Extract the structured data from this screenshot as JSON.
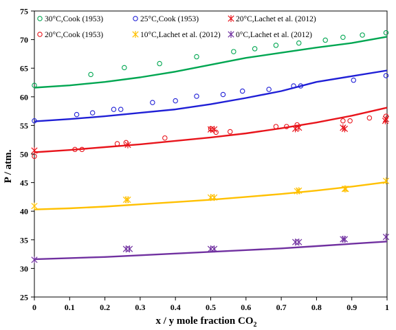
{
  "chart_data": {
    "type": "scatter",
    "xlabel": "x / y mole fraction  CO",
    "xlabel_sub": "2",
    "ylabel": "P / atm.",
    "xlim": [
      0,
      1
    ],
    "ylim": [
      25,
      75
    ],
    "x_ticks": [
      "0",
      "0.1",
      "0.2",
      "0.3",
      "0.4",
      "0.5",
      "0.6",
      "0.7",
      "0.8",
      "0.9",
      "1"
    ],
    "y_ticks": [
      "25",
      "30",
      "35",
      "40",
      "45",
      "50",
      "55",
      "60",
      "65",
      "70",
      "75"
    ],
    "grid": false,
    "legend_position": "top",
    "series": [
      {
        "name": "30°C,Cook (1953)",
        "color": "#00a651",
        "marker": "circle",
        "points": [
          [
            0,
            62.0
          ],
          [
            0.16,
            63.9
          ],
          [
            0.255,
            65.1
          ],
          [
            0.355,
            65.8
          ],
          [
            0.46,
            67.0
          ],
          [
            0.565,
            67.9
          ],
          [
            0.625,
            68.4
          ],
          [
            0.685,
            69.0
          ],
          [
            0.75,
            69.4
          ],
          [
            0.825,
            69.9
          ],
          [
            0.875,
            70.4
          ],
          [
            0.93,
            70.8
          ],
          [
            0.997,
            71.2
          ]
        ]
      },
      {
        "name": "25°C,Cook (1953)",
        "color": "#1f1fd6",
        "marker": "circle",
        "points": [
          [
            0,
            55.8
          ],
          [
            0.12,
            56.9
          ],
          [
            0.165,
            57.2
          ],
          [
            0.225,
            57.8
          ],
          [
            0.245,
            57.8
          ],
          [
            0.335,
            59.0
          ],
          [
            0.4,
            59.3
          ],
          [
            0.46,
            60.1
          ],
          [
            0.535,
            60.4
          ],
          [
            0.59,
            61.0
          ],
          [
            0.665,
            61.3
          ],
          [
            0.735,
            61.9
          ],
          [
            0.755,
            61.9
          ],
          [
            0.905,
            62.9
          ],
          [
            0.997,
            63.7
          ]
        ]
      },
      {
        "name": "20°C,Lachet et al. (2012)",
        "color": "#e8141b",
        "marker": "star",
        "points": [
          [
            0,
            50.6
          ],
          [
            0.265,
            51.6
          ],
          [
            0.5,
            54.3
          ],
          [
            0.51,
            54.3
          ],
          [
            0.74,
            54.4
          ],
          [
            0.75,
            54.6
          ],
          [
            0.875,
            54.6
          ],
          [
            0.88,
            54.4
          ],
          [
            0.995,
            55.8
          ],
          [
            0.997,
            56.1
          ]
        ]
      },
      {
        "name": "20°C,Cook (1953)",
        "color": "#e8141b",
        "marker": "circle",
        "points": [
          [
            0,
            49.6
          ],
          [
            0.115,
            50.8
          ],
          [
            0.135,
            50.8
          ],
          [
            0.235,
            51.8
          ],
          [
            0.26,
            52.0
          ],
          [
            0.37,
            52.8
          ],
          [
            0.5,
            54.4
          ],
          [
            0.515,
            53.8
          ],
          [
            0.555,
            53.9
          ],
          [
            0.685,
            54.8
          ],
          [
            0.715,
            54.8
          ],
          [
            0.745,
            55.1
          ],
          [
            0.875,
            55.8
          ],
          [
            0.895,
            55.8
          ],
          [
            0.95,
            56.3
          ],
          [
            0.997,
            56.6
          ]
        ]
      },
      {
        "name": "10°C,Lachet et al. (2012)",
        "color": "#ffc000",
        "marker": "star",
        "points": [
          [
            0,
            40.9
          ],
          [
            0.26,
            42.0
          ],
          [
            0.265,
            42.0
          ],
          [
            0.5,
            42.4
          ],
          [
            0.51,
            42.4
          ],
          [
            0.745,
            43.5
          ],
          [
            0.75,
            43.6
          ],
          [
            0.88,
            43.9
          ],
          [
            0.883,
            43.9
          ],
          [
            0.997,
            45.3
          ]
        ]
      },
      {
        "name": "0°C,Lachet et al. (2012)",
        "color": "#7030a0",
        "marker": "star",
        "points": [
          [
            0,
            31.5
          ],
          [
            0.26,
            33.4
          ],
          [
            0.27,
            33.4
          ],
          [
            0.5,
            33.4
          ],
          [
            0.51,
            33.4
          ],
          [
            0.74,
            34.6
          ],
          [
            0.75,
            34.6
          ],
          [
            0.875,
            35.1
          ],
          [
            0.88,
            35.1
          ],
          [
            0.997,
            35.5
          ]
        ]
      }
    ],
    "model_lines": [
      {
        "color": "#00a651",
        "x": [
          0,
          0.1,
          0.2,
          0.3,
          0.4,
          0.5,
          0.6,
          0.7,
          0.8,
          0.9,
          1
        ],
        "y": [
          61.6,
          62.0,
          62.6,
          63.4,
          64.4,
          65.6,
          66.8,
          67.7,
          68.6,
          69.4,
          70.5
        ]
      },
      {
        "color": "#1f1fd6",
        "x": [
          0,
          0.1,
          0.2,
          0.3,
          0.4,
          0.5,
          0.6,
          0.7,
          0.8,
          0.9,
          1
        ],
        "y": [
          55.7,
          56.1,
          56.6,
          57.2,
          57.8,
          58.7,
          59.8,
          61.0,
          62.6,
          63.6,
          64.6
        ]
      },
      {
        "color": "#e8141b",
        "x": [
          0,
          0.1,
          0.2,
          0.3,
          0.4,
          0.5,
          0.6,
          0.7,
          0.8,
          0.9,
          1
        ],
        "y": [
          50.3,
          50.7,
          51.2,
          51.7,
          52.3,
          52.9,
          53.6,
          54.5,
          55.5,
          56.7,
          58.1
        ]
      },
      {
        "color": "#ffc000",
        "x": [
          0,
          0.1,
          0.2,
          0.3,
          0.4,
          0.5,
          0.6,
          0.7,
          0.8,
          0.9,
          1
        ],
        "y": [
          40.3,
          40.5,
          40.8,
          41.2,
          41.6,
          42.0,
          42.5,
          43.0,
          43.6,
          44.3,
          45.1
        ]
      },
      {
        "color": "#7030a0",
        "x": [
          0,
          0.1,
          0.2,
          0.3,
          0.4,
          0.5,
          0.6,
          0.7,
          0.8,
          0.9,
          1
        ],
        "y": [
          31.6,
          31.8,
          32.0,
          32.3,
          32.6,
          32.9,
          33.2,
          33.5,
          33.9,
          34.3,
          34.7
        ]
      }
    ]
  }
}
